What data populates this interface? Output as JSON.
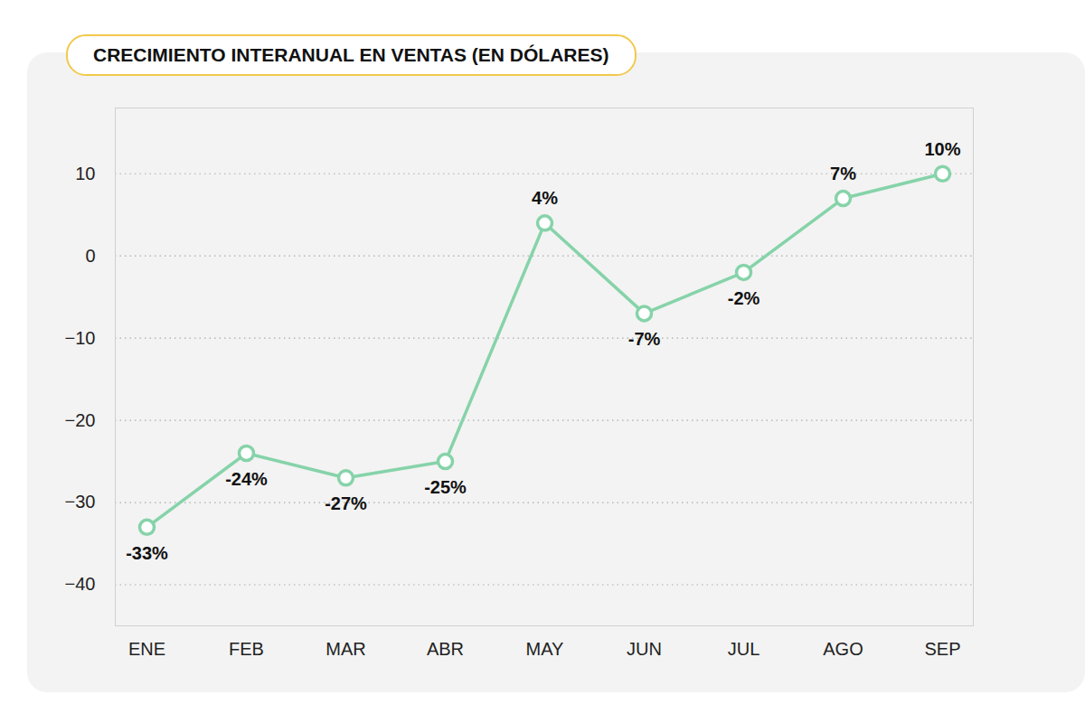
{
  "chart_data": {
    "type": "line",
    "title": "CRECIMIENTO INTERANUAL EN VENTAS (EN DÓLARES)",
    "categories": [
      "ENE",
      "FEB",
      "MAR",
      "ABR",
      "MAY",
      "JUN",
      "JUL",
      "AGO",
      "SEP"
    ],
    "values": [
      -33,
      -24,
      -27,
      -25,
      4,
      -7,
      -2,
      7,
      10
    ],
    "value_labels": [
      "-33%",
      "-24%",
      "-27%",
      "-25%",
      "4%",
      "-7%",
      "-2%",
      "7%",
      "10%"
    ],
    "color": "#86d3a9",
    "marker": "circle",
    "ylim": [
      -45,
      18
    ],
    "yticks": [
      -40,
      -30,
      -20,
      -10,
      0,
      10
    ],
    "grid": true,
    "data_labels": true
  }
}
